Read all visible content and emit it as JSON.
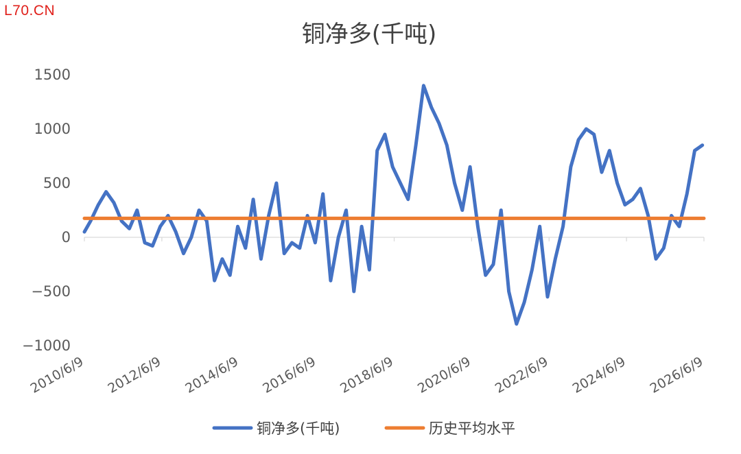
{
  "watermark": "L70.CN",
  "chart_data": {
    "type": "line",
    "title": "铜净多(千吨)",
    "xlabel": "",
    "ylabel": "",
    "ylim": [
      -1000,
      1500
    ],
    "y_ticks": [
      "1500",
      "1000",
      "500",
      "0",
      "−500",
      "−1000"
    ],
    "y_tick_values": [
      1500,
      1000,
      500,
      0,
      -500,
      -1000
    ],
    "x_ticks": [
      "2010/6/9",
      "2012/6/9",
      "2014/6/9",
      "2016/6/9",
      "2018/6/9",
      "2020/6/9",
      "2022/6/9",
      "2024/6/9",
      "2026/6/9"
    ],
    "x_tick_years": [
      2010.44,
      2012.44,
      2014.44,
      2016.44,
      2018.44,
      2020.44,
      2022.44,
      2024.44,
      2026.44
    ],
    "x_range_years": [
      2010.44,
      2026.44
    ],
    "legend_position": "bottom",
    "grid": false,
    "series": [
      {
        "name": "铜净多(千吨)",
        "color": "#4472c4",
        "x_years": [
          2010.44,
          2010.6,
          2010.8,
          2011.0,
          2011.2,
          2011.4,
          2011.6,
          2011.8,
          2012.0,
          2012.2,
          2012.4,
          2012.6,
          2012.8,
          2013.0,
          2013.2,
          2013.4,
          2013.6,
          2013.8,
          2014.0,
          2014.2,
          2014.4,
          2014.6,
          2014.8,
          2015.0,
          2015.2,
          2015.4,
          2015.6,
          2015.8,
          2016.0,
          2016.2,
          2016.4,
          2016.6,
          2016.8,
          2017.0,
          2017.2,
          2017.4,
          2017.6,
          2017.8,
          2018.0,
          2018.2,
          2018.4,
          2018.6,
          2018.8,
          2019.0,
          2019.2,
          2019.4,
          2019.6,
          2019.8,
          2020.0,
          2020.2,
          2020.4,
          2020.6,
          2020.8,
          2021.0,
          2021.2,
          2021.4,
          2021.6,
          2021.8,
          2022.0,
          2022.2,
          2022.4,
          2022.6,
          2022.8,
          2023.0,
          2023.2,
          2023.4,
          2023.6,
          2023.8,
          2024.0,
          2024.2,
          2024.4,
          2024.6,
          2024.8,
          2025.0,
          2025.2,
          2025.4,
          2025.6,
          2025.8,
          2026.0,
          2026.2,
          2026.4
        ],
        "values": [
          50,
          150,
          300,
          420,
          320,
          150,
          80,
          250,
          -50,
          -80,
          100,
          200,
          50,
          -150,
          0,
          250,
          150,
          -400,
          -200,
          -350,
          100,
          -100,
          350,
          -200,
          200,
          500,
          -150,
          -50,
          -100,
          200,
          -50,
          400,
          -400,
          0,
          250,
          -500,
          100,
          -300,
          800,
          950,
          650,
          500,
          350,
          850,
          1400,
          1200,
          1050,
          850,
          500,
          250,
          650,
          100,
          -350,
          -250,
          250,
          -500,
          -800,
          -600,
          -300,
          100,
          -550,
          -200,
          100,
          650,
          900,
          1000,
          950,
          600,
          800,
          500,
          300,
          350,
          450,
          200,
          -200,
          -100,
          200,
          100,
          400,
          800,
          850
        ]
      },
      {
        "name": "历史平均水平",
        "color": "#ed7d31",
        "x_years": [
          2010.44,
          2026.44
        ],
        "values": [
          175,
          175
        ]
      }
    ]
  }
}
